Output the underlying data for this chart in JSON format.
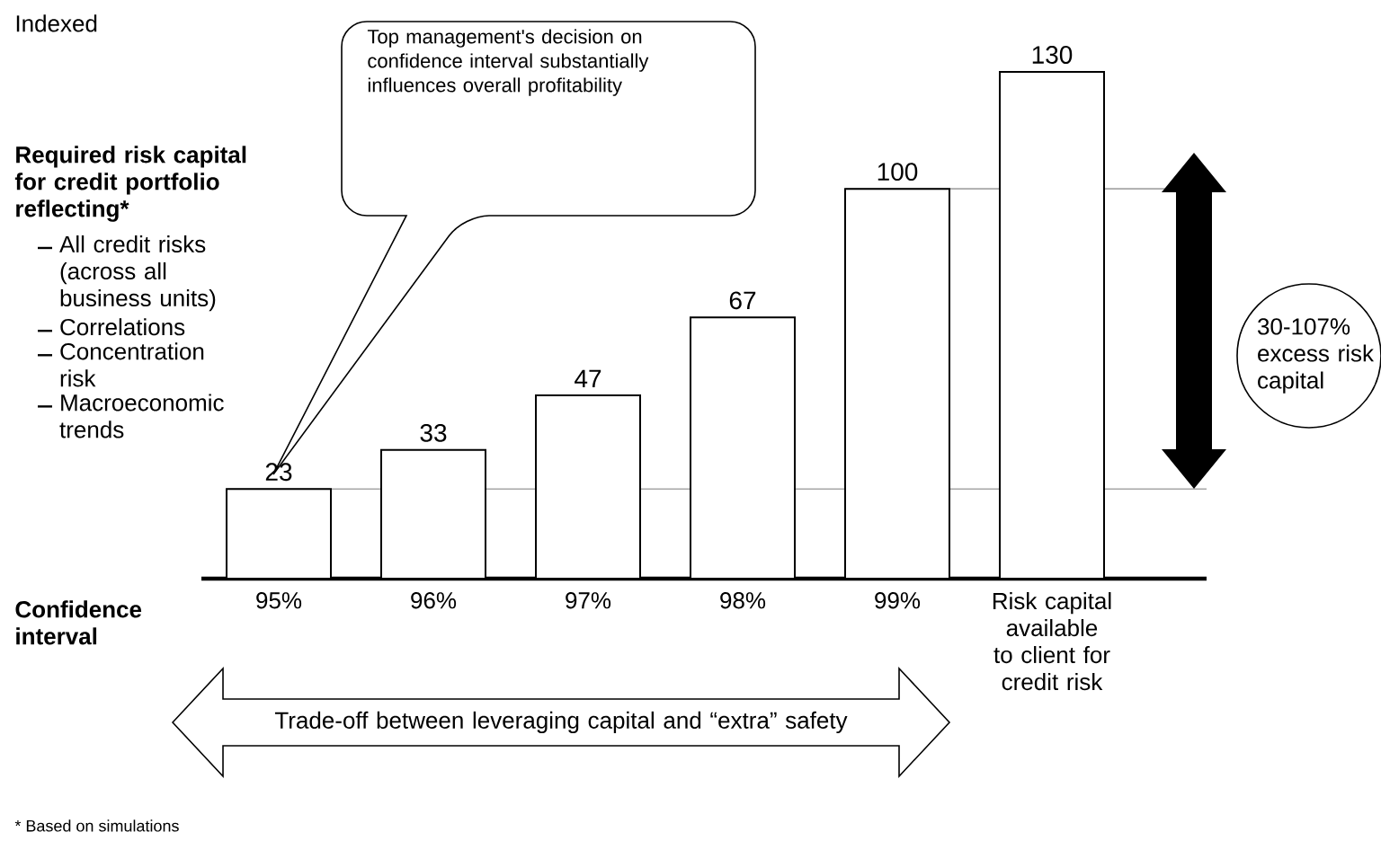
{
  "chart_data": {
    "type": "bar",
    "categories": [
      "95%",
      "96%",
      "97%",
      "98%",
      "99%",
      "Risk capital available to client for credit risk"
    ],
    "values": [
      23,
      33,
      47,
      67,
      100,
      130
    ],
    "color": "#ffffff",
    "data_labels": true,
    "tick_labels": "x",
    "ref_lines": [
      {
        "axis": "y",
        "value": 23,
        "color": "#a6a6a6"
      },
      {
        "axis": "y",
        "value": 100,
        "color": "#a6a6a6"
      }
    ],
    "annotations": [
      "Indexed",
      "Required risk capital for credit portfolio reflecting*",
      "All credit risks (across all business units)",
      "Correlations",
      "Concentration risk",
      "Macroeconomic trends",
      "Confidence interval",
      "Top management's decision on confidence interval substantially influences overall profitability",
      "30-107% excess risk capital",
      "Trade-off between leveraging capital and “extra” safety",
      "* Based on simulations"
    ]
  }
}
